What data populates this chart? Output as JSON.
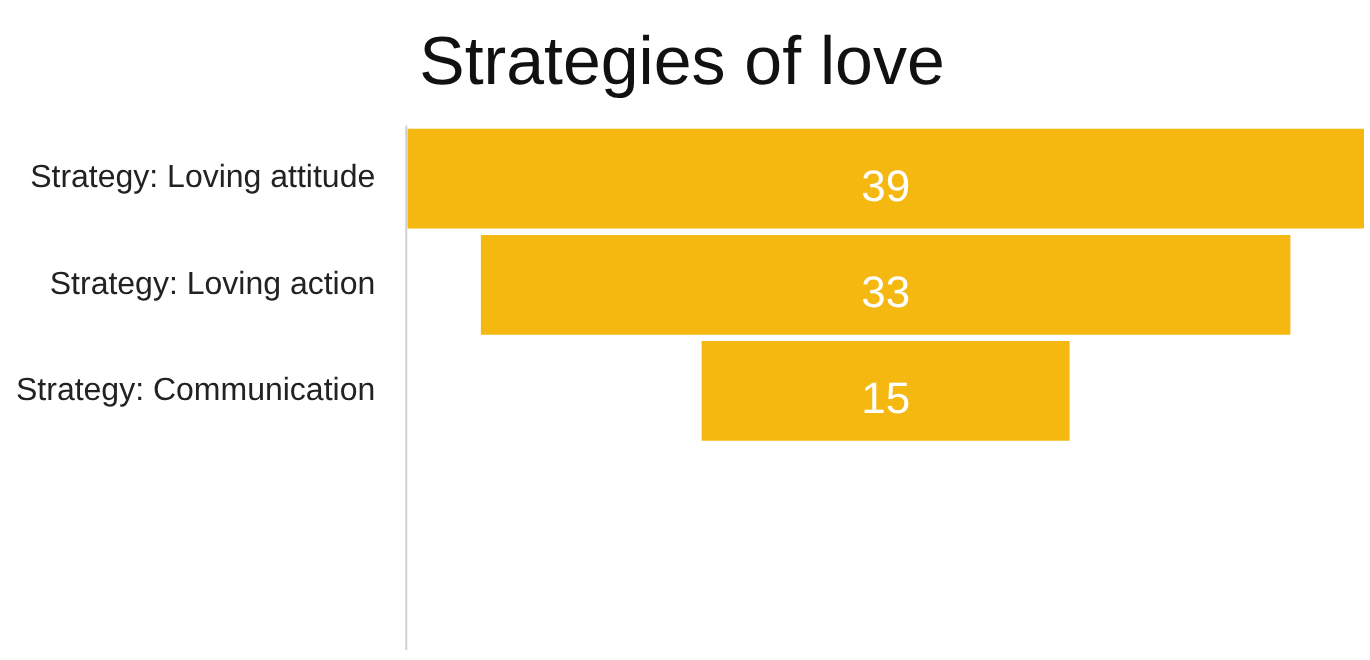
{
  "chart_data": {
    "type": "other",
    "title": "Strategies of love",
    "categories": [
      "Strategy: Loving attitude",
      "Strategy: Loving action",
      "Strategy: Communication"
    ],
    "values": [
      39,
      33,
      15
    ],
    "color": "#f4b810",
    "data_labels": true
  }
}
